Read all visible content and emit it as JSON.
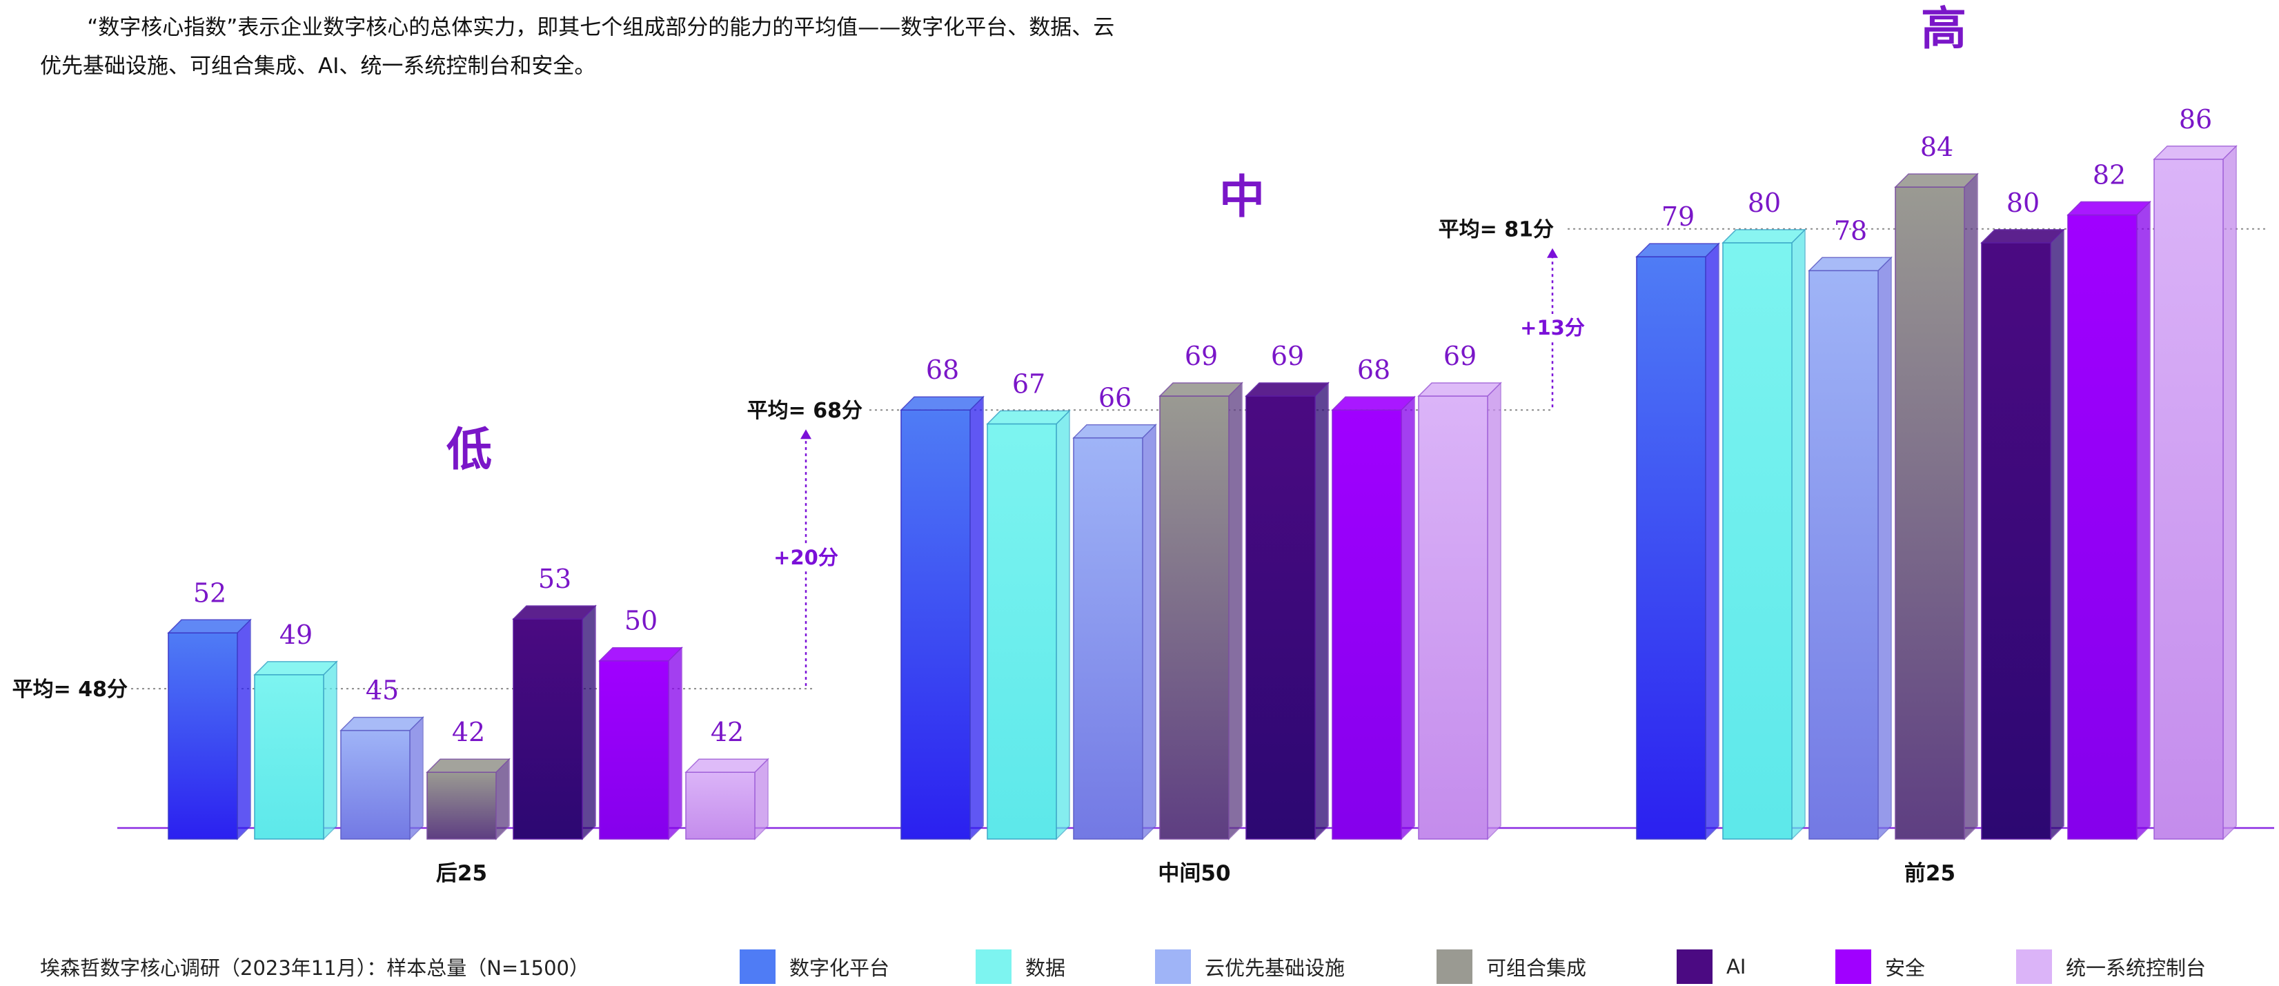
{
  "intro_text": "“数字核心指数”表示企业数字核心的总体实力，即其七个组成部分的能力的平均值——数字化平台、数据、云优先基础设施、可组合集成、AI、统一系统控制台和安全。",
  "source_note": "埃森哲数字核心调研（2023年11月）：样本总量（N=1500）",
  "legend": [
    {
      "label": "数字化平台",
      "color": "#4f7cf5"
    },
    {
      "label": "数据",
      "color": "#7df4f0"
    },
    {
      "label": "云优先基础设施",
      "color": "#9fb4f7"
    },
    {
      "label": "可组合集成",
      "color": "#9a9a92"
    },
    {
      "label": "AI",
      "color": "#4b0a82"
    },
    {
      "label": "安全",
      "color": "#a000ff"
    },
    {
      "label": "统一系统控制台",
      "color": "#dbb4f8"
    }
  ],
  "chart_data": {
    "type": "bar",
    "categories": [
      "后25",
      "中间50",
      "前25"
    ],
    "level_labels": [
      "低",
      "中",
      "高"
    ],
    "series": [
      {
        "name": "数字化平台",
        "values": [
          52,
          68,
          79
        ]
      },
      {
        "name": "数据",
        "values": [
          49,
          67,
          80
        ]
      },
      {
        "name": "云优先基础设施",
        "values": [
          45,
          66,
          78
        ]
      },
      {
        "name": "可组合集成",
        "values": [
          42,
          69,
          84
        ]
      },
      {
        "name": "AI",
        "values": [
          53,
          69,
          80
        ]
      },
      {
        "name": "安全",
        "values": [
          50,
          68,
          82
        ]
      },
      {
        "name": "统一系统控制台",
        "values": [
          42,
          69,
          86
        ]
      }
    ],
    "averages": [
      "平均= 48分",
      "平均= 68分",
      "平均= 81分"
    ],
    "average_values": [
      48,
      68,
      81
    ],
    "increments": [
      "+20分",
      "+13分"
    ],
    "ylim": [
      0,
      90
    ],
    "legend_position": "bottom"
  }
}
